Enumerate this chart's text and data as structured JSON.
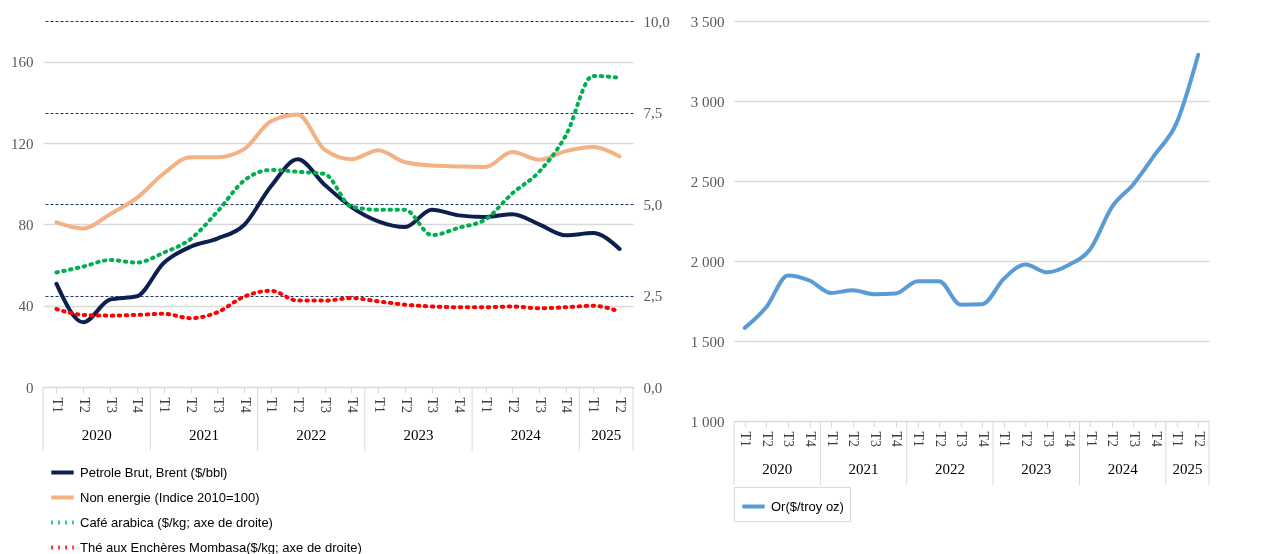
{
  "chart_data": [
    {
      "type": "line",
      "categories": [
        "T1",
        "T2",
        "T3",
        "T4",
        "T1",
        "T2",
        "T3",
        "T4",
        "T1",
        "T2",
        "T3",
        "T4",
        "T1",
        "T2",
        "T3",
        "T4",
        "T1",
        "T2",
        "T3",
        "T4",
        "T1",
        "T2"
      ],
      "annotations": [
        "2020",
        "2021",
        "2022",
        "2023",
        "2024",
        "2025"
      ],
      "ylim": [
        0,
        180
      ],
      "yticks": [
        0,
        40,
        80,
        120,
        160
      ],
      "y2lim": [
        0,
        10
      ],
      "y2ticks": [
        {
          "value": 0,
          "label": "0,0"
        },
        {
          "value": 2.5,
          "label": "2,5"
        },
        {
          "value": 5,
          "label": "5,0"
        },
        {
          "value": 7.5,
          "label": "7,5"
        },
        {
          "value": 10,
          "label": "10,0"
        }
      ],
      "grid": "y",
      "legend": "bottom",
      "series": [
        {
          "name": "Petrole Brut, Brent ($/bbl)",
          "color": "#0d1f4f",
          "line_style": "solid",
          "values": [
            50.8,
            31.8,
            43,
            44.6,
            61,
            69,
            73,
            79.7,
            98.7,
            112,
            99.5,
            88.5,
            81.5,
            78.7,
            87.2,
            84.4,
            83.6,
            85,
            80,
            74.6,
            75.7,
            67.9
          ]
        },
        {
          "name": "Non energie (Indice 2010=100)",
          "color": "#f4b183",
          "line_style": "solid",
          "values": [
            81,
            78,
            85,
            93,
            105,
            113,
            113,
            117,
            130.7,
            134,
            116.7,
            112,
            116.4,
            110.5,
            108.9,
            108.5,
            108.2,
            115.6,
            111.8,
            116,
            118,
            113.4
          ]
        },
        {
          "name": "Café arabica ($/kg; axe de droite)",
          "color": "#00b050",
          "line_style": "dotted",
          "axis": "y2",
          "values": [
            3.13,
            3.29,
            3.47,
            3.4,
            3.67,
            4.04,
            4.79,
            5.64,
            5.93,
            5.88,
            5.82,
            4.93,
            4.84,
            4.84,
            4.15,
            4.35,
            4.58,
            5.29,
            5.88,
            6.88,
            8.5,
            8.45
          ]
        },
        {
          "name": "Thé aux Enchères Mombasa($/kg; axe de droite)",
          "color": "#ff0000",
          "line_style": "dotted",
          "axis": "y2",
          "values": [
            2.13,
            1.97,
            1.95,
            1.97,
            2.0,
            1.88,
            2.04,
            2.47,
            2.63,
            2.36,
            2.36,
            2.43,
            2.34,
            2.25,
            2.2,
            2.18,
            2.18,
            2.2,
            2.15,
            2.18,
            2.22,
            2.06
          ]
        }
      ]
    },
    {
      "type": "line",
      "categories": [
        "T1",
        "T2",
        "T3",
        "T4",
        "T1",
        "T2",
        "T3",
        "T4",
        "T1",
        "T2",
        "T3",
        "T4",
        "T1",
        "T2",
        "T3",
        "T4",
        "T1",
        "T2",
        "T3",
        "T4",
        "T1",
        "T2"
      ],
      "annotations": [
        "2020",
        "2021",
        "2022",
        "2023",
        "2024",
        "2025"
      ],
      "ylim": [
        1000,
        3500
      ],
      "yticks": [
        {
          "value": 1000,
          "label": "1 000"
        },
        {
          "value": 1500,
          "label": "1 500"
        },
        {
          "value": 2000,
          "label": "2 000"
        },
        {
          "value": 2500,
          "label": "2 500"
        },
        {
          "value": 3000,
          "label": "3 000"
        },
        {
          "value": 3500,
          "label": "3 500"
        }
      ],
      "grid": "y",
      "legend": "bottom",
      "series": [
        {
          "name": "Or($/troy oz)",
          "color": "#5b9bd5",
          "line_style": "solid",
          "values": [
            1582,
            1713,
            1910,
            1878,
            1800,
            1817,
            1792,
            1797,
            1874,
            1874,
            1727,
            1730,
            1889,
            1978,
            1929,
            1975,
            2074,
            2337,
            2480,
            2666,
            2863,
            3289
          ]
        }
      ]
    }
  ]
}
